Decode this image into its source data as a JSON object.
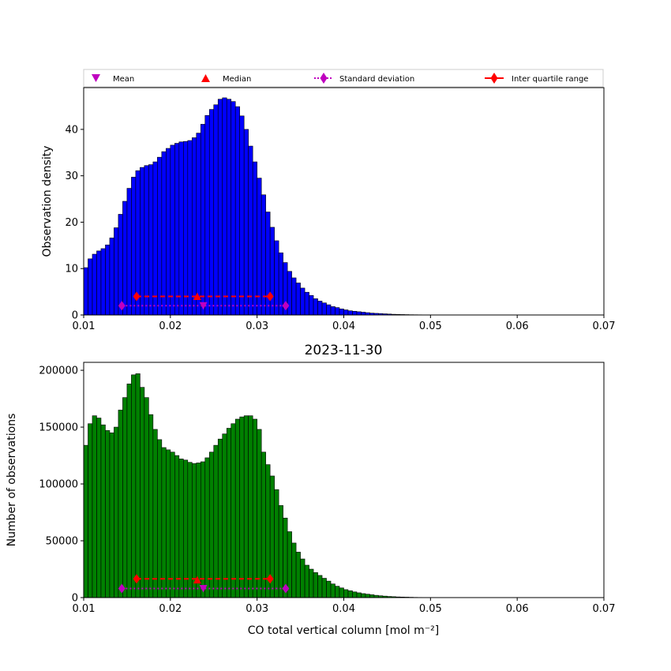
{
  "legend": {
    "placement": "above-top-axes",
    "items": [
      {
        "label": "Mean",
        "marker": "triangle-down",
        "color": "#bf00bf"
      },
      {
        "label": "Median",
        "marker": "triangle-up",
        "color": "#ff0000"
      },
      {
        "label": "Standard deviation",
        "marker": "diamond-dotted-line",
        "color": "#bf00bf"
      },
      {
        "label": "Inter quartile range",
        "marker": "diamond-solid-line",
        "color": "#ff0000"
      }
    ]
  },
  "chart_data": [
    {
      "type": "bar",
      "panel": "top",
      "title": "",
      "xlabel": "",
      "ylabel": "Observation density",
      "xlim": [
        0.01,
        0.07
      ],
      "ylim": [
        0,
        49
      ],
      "xticks": [
        0.01,
        0.02,
        0.03,
        0.04,
        0.05,
        0.06,
        0.07
      ],
      "xtick_labels": [
        "0.01",
        "0.02",
        "0.03",
        "0.04",
        "0.05",
        "0.06",
        "0.07"
      ],
      "yticks": [
        0,
        10,
        20,
        30,
        40
      ],
      "ytick_labels": [
        "0",
        "10",
        "20",
        "30",
        "40"
      ],
      "grid": false,
      "bar_color": "#0000ff",
      "bin_start": 0.01,
      "bin_width": 0.0005,
      "values": [
        10.2,
        12.1,
        13.1,
        13.8,
        14.3,
        15.1,
        16.6,
        18.8,
        21.7,
        24.5,
        27.3,
        29.7,
        31.1,
        31.8,
        32.2,
        32.4,
        33.0,
        34.0,
        35.2,
        35.9,
        36.6,
        37.0,
        37.3,
        37.4,
        37.6,
        38.2,
        39.2,
        41.1,
        43.0,
        44.3,
        45.3,
        46.5,
        46.8,
        46.5,
        46.0,
        44.9,
        42.9,
        40.0,
        36.4,
        33.0,
        29.5,
        25.9,
        22.2,
        18.9,
        16.0,
        13.4,
        11.3,
        9.4,
        8.0,
        6.9,
        5.8,
        4.9,
        4.2,
        3.5,
        3.0,
        2.6,
        2.2,
        1.8,
        1.6,
        1.3,
        1.1,
        0.9,
        0.8,
        0.7,
        0.6,
        0.5,
        0.4,
        0.35,
        0.3,
        0.25,
        0.2,
        0.15,
        0.12,
        0.1,
        0.08,
        0.06,
        0.05,
        0.04,
        0.03,
        0.02
      ],
      "stats": {
        "mean": {
          "x": 0.0238,
          "y": 2.0
        },
        "median": {
          "x": 0.0231,
          "y": 4.0
        },
        "std_range": {
          "x": [
            0.0144,
            0.0333
          ],
          "y": 2.0
        },
        "iqr": {
          "x": [
            0.0161,
            0.0315
          ],
          "y": 4.0
        }
      }
    },
    {
      "type": "bar",
      "panel": "bottom",
      "title": "2023-11-30",
      "xlabel": "CO total vertical column [mol m⁻²]",
      "ylabel": "Number of observations",
      "xlim": [
        0.01,
        0.07
      ],
      "ylim": [
        0,
        207000
      ],
      "xticks": [
        0.01,
        0.02,
        0.03,
        0.04,
        0.05,
        0.06,
        0.07
      ],
      "xtick_labels": [
        "0.01",
        "0.02",
        "0.03",
        "0.04",
        "0.05",
        "0.06",
        "0.07"
      ],
      "yticks": [
        0,
        50000,
        100000,
        150000,
        200000
      ],
      "ytick_labels": [
        "0",
        "50000",
        "100000",
        "150000",
        "200000"
      ],
      "grid": false,
      "bar_color": "#008000",
      "bin_start": 0.01,
      "bin_width": 0.0005,
      "values": [
        134000,
        153000,
        160000,
        158000,
        152000,
        147000,
        145000,
        150000,
        165000,
        176000,
        188000,
        196000,
        197000,
        185000,
        176000,
        161000,
        148000,
        139000,
        132000,
        130000,
        128000,
        125000,
        122000,
        121000,
        119000,
        118000,
        118500,
        119500,
        123000,
        128000,
        134000,
        139500,
        144000,
        149000,
        153000,
        157000,
        159000,
        160000,
        160000,
        157000,
        148000,
        128000,
        117000,
        107000,
        95000,
        81000,
        70000,
        58000,
        48000,
        40000,
        34000,
        28500,
        25000,
        22000,
        19500,
        17000,
        14500,
        12000,
        10000,
        8500,
        7000,
        6000,
        5000,
        4200,
        3500,
        3000,
        2500,
        2000,
        1600,
        1300,
        1000,
        800,
        600,
        500,
        400,
        300,
        200,
        150,
        100,
        50
      ],
      "stats": {
        "mean": {
          "x": 0.0238,
          "y": 8000
        },
        "median": {
          "x": 0.0231,
          "y": 15500
        },
        "std_range": {
          "x": [
            0.0144,
            0.0333
          ],
          "y": 8000
        },
        "iqr": {
          "x": [
            0.0161,
            0.0315
          ],
          "y": 16500
        }
      }
    }
  ]
}
